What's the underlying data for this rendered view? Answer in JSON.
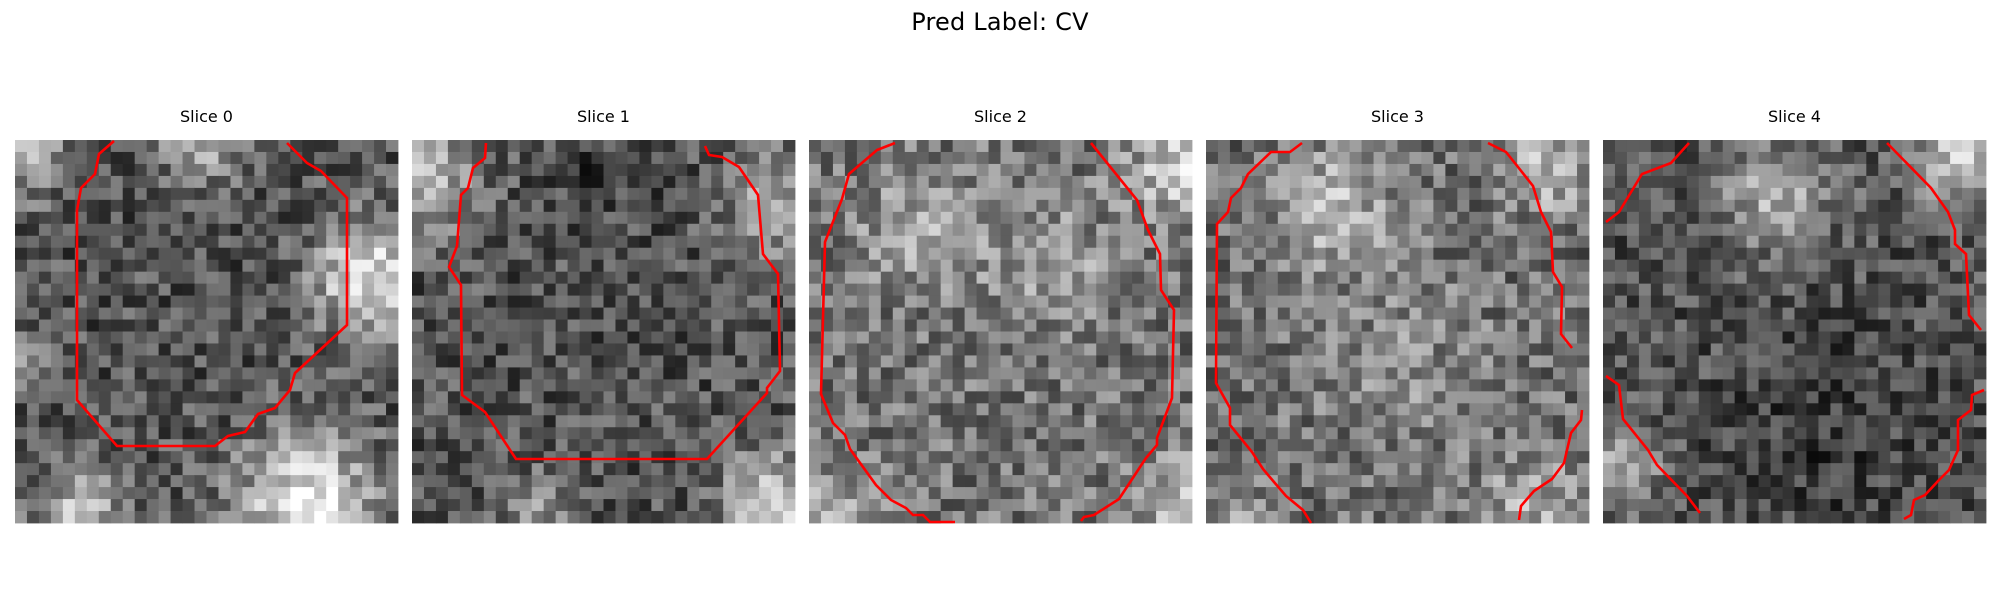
{
  "figure": {
    "title": "Pred Label: CV",
    "contour_color": "#ff0000",
    "colormap": "gray",
    "grid_size": 32
  },
  "panels": [
    {
      "title": "Slice 0"
    },
    {
      "title": "Slice 1"
    },
    {
      "title": "Slice 2"
    },
    {
      "title": "Slice 3"
    },
    {
      "title": "Slice 4"
    }
  ]
}
